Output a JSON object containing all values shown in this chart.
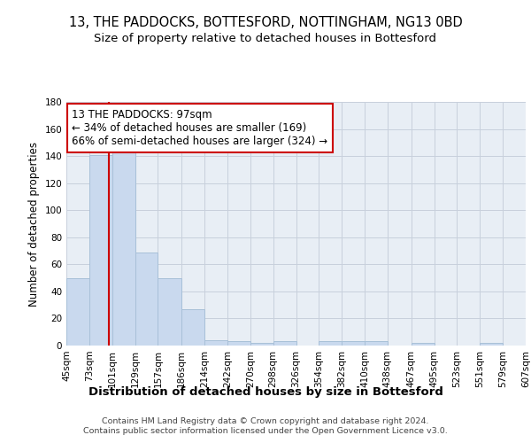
{
  "title": "13, THE PADDOCKS, BOTTESFORD, NOTTINGHAM, NG13 0BD",
  "subtitle": "Size of property relative to detached houses in Bottesford",
  "xlabel_bottom": "Distribution of detached houses by size in Bottesford",
  "ylabel": "Number of detached properties",
  "bin_edges": [
    45,
    73,
    101,
    129,
    157,
    186,
    214,
    242,
    270,
    298,
    326,
    354,
    382,
    410,
    438,
    467,
    495,
    523,
    551,
    579,
    607
  ],
  "bar_heights": [
    50,
    141,
    146,
    69,
    50,
    27,
    4,
    3,
    2,
    3,
    0,
    3,
    3,
    3,
    0,
    2,
    0,
    0,
    2,
    0
  ],
  "bar_color": "#c9d9ee",
  "bar_edge_color": "#a8c0d8",
  "bar_linewidth": 0.7,
  "red_line_x": 97,
  "red_line_color": "#cc0000",
  "annotation_text": "13 THE PADDOCKS: 97sqm\n← 34% of detached houses are smaller (169)\n66% of semi-detached houses are larger (324) →",
  "annotation_box_color": "white",
  "annotation_box_edge": "#cc0000",
  "ylim": [
    0,
    180
  ],
  "yticks": [
    0,
    20,
    40,
    60,
    80,
    100,
    120,
    140,
    160,
    180
  ],
  "grid_color": "#c8d0dc",
  "background_color": "#e8eef5",
  "footer_text": "Contains HM Land Registry data © Crown copyright and database right 2024.\nContains public sector information licensed under the Open Government Licence v3.0.",
  "title_fontsize": 10.5,
  "subtitle_fontsize": 9.5,
  "tick_label_fontsize": 7.5,
  "ylabel_fontsize": 8.5,
  "annotation_fontsize": 8.5,
  "xlabel_bottom_fontsize": 9.5
}
